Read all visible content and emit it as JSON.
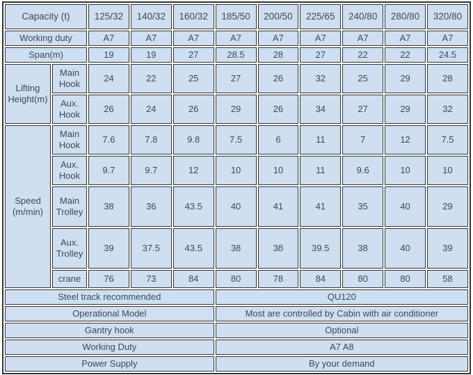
{
  "colors": {
    "page-bg": "#ffffff",
    "cell-bg": "#cfdff1",
    "border": "#333333",
    "text": "#3d4856"
  },
  "table": {
    "capacity": {
      "label": "Capacity (t)",
      "values": [
        "125/32",
        "140/32",
        "160/32",
        "185/50",
        "200/50",
        "225/65",
        "240/80",
        "280/80",
        "320/80"
      ]
    },
    "working_duty": {
      "label": "Working duty",
      "values": [
        "A7",
        "A7",
        "A7",
        "A7",
        "A7",
        "A7",
        "A7",
        "A7",
        "A7"
      ]
    },
    "span": {
      "label": "Span(m)",
      "values": [
        "19",
        "19",
        "27",
        "28.5",
        "28",
        "27",
        "22",
        "22",
        "24.5"
      ]
    },
    "lifting_height": {
      "label": "Lifting Height(m)",
      "rows": [
        {
          "label": "Main Hook",
          "values": [
            "24",
            "22",
            "25",
            "27",
            "26",
            "32",
            "25",
            "29",
            "28"
          ]
        },
        {
          "label": "Aux. Hook",
          "values": [
            "26",
            "24",
            "26",
            "29",
            "26",
            "34",
            "27",
            "29",
            "32"
          ]
        }
      ]
    },
    "speed": {
      "label": "Speed (m/min)",
      "rows": [
        {
          "label": "Main Hook",
          "values": [
            "7.6",
            "7.8",
            "9.8",
            "7.5",
            "6",
            "11",
            "7",
            "12",
            "7.5"
          ]
        },
        {
          "label": "Aux. Hook",
          "values": [
            "9.7",
            "9.7",
            "12",
            "10",
            "10",
            "11",
            "9.6",
            "10",
            "10"
          ]
        },
        {
          "label": "Main Trolley",
          "values": [
            "38",
            "36",
            "43.5",
            "40",
            "41",
            "41",
            "35",
            "40",
            "29"
          ]
        },
        {
          "label": "Aux. Trolley",
          "values": [
            "39",
            "37.5",
            "43.5",
            "38",
            "38",
            "39.5",
            "38",
            "40",
            "39"
          ]
        },
        {
          "label": "crane",
          "values": [
            "76",
            "73",
            "84",
            "80",
            "78",
            "84",
            "80",
            "80",
            "58"
          ]
        }
      ]
    },
    "footer_rows": [
      {
        "label": "Steel track recommended",
        "value": "QU120"
      },
      {
        "label": "Operational Model",
        "value": "Most are controlled by Cabin with air conditioner"
      },
      {
        "label": "Gantry hook",
        "value": "Optional"
      },
      {
        "label": "Working Duty",
        "value": "A7 A8"
      },
      {
        "label": "Power Supply",
        "value": "By your demand"
      }
    ]
  }
}
